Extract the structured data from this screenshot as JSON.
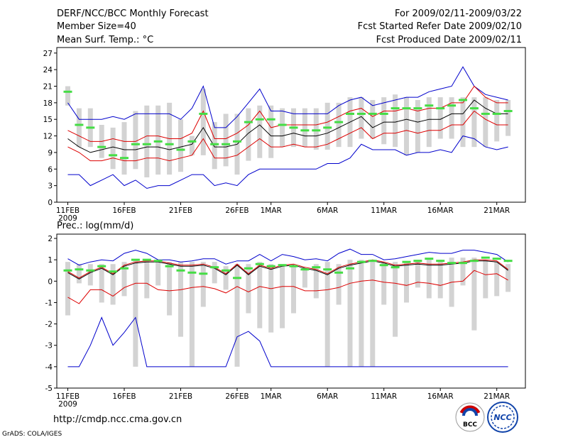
{
  "header": {
    "title": "DERF/NCC/BCC Monthly Forecast",
    "member_size": "Member Size=40",
    "variable": "Mean Surf. Temp.: °C",
    "period": "For 2009/02/11-2009/03/22",
    "fcst_started": "Fcst Started Refer Date 2009/02/10",
    "fcst_produced": "Fcst Produced Date 2009/02/11"
  },
  "footer": {
    "url": "http://cmdp.ncc.cma.gov.cn",
    "grads": "GrADS: COLA/IGES",
    "logo_left_text": "BCC",
    "logo_right_text": "NCC"
  },
  "colors": {
    "box": "#d3d3d3",
    "green": "#44dd44",
    "mean": "#000000",
    "red": "#dd0000",
    "blue": "#0000cc"
  },
  "chart_data": [
    {
      "type": "box-line",
      "title": "Mean Surf. Temp.: °C",
      "ylim": [
        0,
        28
      ],
      "yticks": [
        0,
        3,
        6,
        9,
        12,
        15,
        18,
        21,
        24,
        27
      ],
      "x_tick_labels": [
        "11FEB",
        "16FEB",
        "21FEB",
        "26FEB",
        "1MAR",
        "6MAR",
        "11MAR",
        "16MAR",
        "21MAR"
      ],
      "x_tick_days": [
        0,
        5,
        10,
        15,
        18,
        23,
        28,
        33,
        38
      ],
      "x_year_label": "2009",
      "days": 40,
      "box_low": [
        17.5,
        10,
        10,
        8,
        6,
        5,
        6,
        4.5,
        5,
        5,
        5.5,
        8.5,
        8.5,
        6,
        6.5,
        5,
        7.5,
        8,
        8,
        10,
        10,
        10,
        9.5,
        9.5,
        10,
        10,
        11.5,
        11.5,
        10.5,
        10,
        8.5,
        9,
        10,
        11.5,
        11.5,
        10,
        10,
        10,
        11,
        12
      ],
      "box_high": [
        21,
        17,
        17,
        14,
        13.5,
        14.5,
        16.5,
        17.5,
        17.5,
        18,
        15,
        12,
        20.5,
        14.5,
        16,
        16,
        17,
        17.5,
        17.5,
        17,
        17,
        17,
        17,
        18,
        18,
        19,
        19,
        18.5,
        19,
        19.5,
        19,
        18.5,
        19,
        19,
        19,
        19,
        19,
        19,
        18.5,
        18.5
      ],
      "green": [
        20,
        14,
        13.5,
        10,
        8.5,
        8,
        10.5,
        10.5,
        11,
        10.5,
        9.5,
        11,
        16,
        10.5,
        10.5,
        11,
        14.5,
        15,
        15,
        14,
        13.5,
        13,
        13,
        13.5,
        14.5,
        16,
        16,
        16,
        16,
        17,
        17,
        17,
        17.5,
        17,
        17.5,
        18.5,
        17,
        16,
        16,
        16.5
      ],
      "mean": [
        11.5,
        10,
        9,
        9.5,
        10,
        9.5,
        9.5,
        10,
        10,
        9.5,
        10,
        10.5,
        13.5,
        10,
        10,
        10.5,
        12.5,
        14,
        12,
        12,
        12.5,
        12,
        12,
        12.5,
        13.5,
        14.5,
        15.5,
        13.5,
        14.5,
        14.5,
        15,
        14.5,
        15,
        15,
        16,
        16,
        18.5,
        17,
        16,
        16
      ],
      "red_hi": [
        13,
        12,
        11,
        11,
        11.5,
        11,
        11,
        12,
        12,
        11.5,
        11.5,
        12.5,
        16.5,
        11.5,
        11.5,
        12.5,
        14,
        16.5,
        13.5,
        14,
        14,
        14,
        14,
        14.5,
        15.5,
        16.5,
        17,
        15.5,
        16.5,
        16.5,
        17,
        16.5,
        17,
        17,
        18,
        18,
        21,
        19,
        18,
        18
      ],
      "red_lo": [
        10,
        9,
        7.5,
        7.5,
        8,
        7.5,
        7.5,
        8,
        8,
        7.5,
        8,
        8.5,
        11.5,
        8,
        8,
        8.5,
        10,
        11.5,
        10,
        10,
        10.5,
        10,
        10,
        10.5,
        11.5,
        12.5,
        13.5,
        11.5,
        12.5,
        12.5,
        13,
        12.5,
        13,
        13,
        14,
        14,
        16.5,
        15,
        14,
        14
      ],
      "blue_hi": [
        18,
        15,
        15,
        15,
        15.5,
        15,
        16,
        16,
        16,
        16,
        15,
        17,
        21,
        13.5,
        13.5,
        15.5,
        18,
        20.5,
        16.5,
        16.5,
        16,
        16,
        16,
        16,
        17.5,
        18.5,
        19,
        17.5,
        18,
        18.5,
        19,
        19,
        20,
        20.5,
        21,
        24.5,
        21,
        19.5,
        19,
        18.5
      ],
      "blue_lo": [
        5,
        5,
        3,
        4,
        5,
        3,
        4,
        2.5,
        3,
        3,
        4,
        5,
        5,
        3,
        3.5,
        3,
        5,
        6,
        6,
        6,
        6,
        6,
        6,
        7,
        7,
        8,
        10.5,
        9.5,
        9.5,
        9.5,
        8.5,
        9,
        9,
        9.5,
        9,
        12,
        11.5,
        10,
        9.5,
        10
      ]
    },
    {
      "type": "box-line",
      "title": "Prec.: log(mm/d)",
      "ylim": [
        -5,
        2.2
      ],
      "yticks": [
        -5,
        -4,
        -3,
        -2,
        -1,
        0,
        1,
        2
      ],
      "x_tick_labels": [
        "11FEB",
        "16FEB",
        "21FEB",
        "26FEB",
        "1MAR",
        "6MAR",
        "11MAR",
        "16MAR",
        "21MAR"
      ],
      "x_tick_days": [
        0,
        5,
        10,
        15,
        18,
        23,
        28,
        33,
        38
      ],
      "x_year_label": "2009",
      "days": 40,
      "box_low": [
        -1.6,
        -0.1,
        -0.2,
        -1,
        -1.1,
        -0.7,
        -4,
        -0.8,
        -0.2,
        -1.6,
        -2.6,
        -4,
        -1.2,
        -0.1,
        -0.4,
        -4,
        -1.5,
        -2.2,
        -2.4,
        -2.2,
        -1.5,
        -0.3,
        -0.8,
        -4,
        -1.1,
        -4,
        -4,
        -4,
        -1.1,
        -2.6,
        -1,
        -0.3,
        -0.8,
        -0.8,
        -1.2,
        -0.2,
        -2.3,
        -0.8,
        -0.7,
        -0.5
      ],
      "box_high": [
        0.9,
        0.8,
        0.8,
        0.8,
        0.8,
        0.9,
        1,
        1,
        1,
        0.9,
        0.9,
        0.9,
        0.9,
        0.9,
        0.7,
        0.8,
        0.8,
        0.9,
        0.8,
        0.8,
        0.7,
        0.6,
        0.8,
        0.9,
        0.8,
        1,
        1,
        1,
        0.9,
        0.9,
        0.9,
        1,
        1,
        1,
        1.1,
        1.1,
        1.1,
        1,
        0.9,
        0.8
      ],
      "green": [
        0.5,
        0.55,
        0.5,
        0.7,
        0.45,
        0.6,
        1,
        1,
        0.95,
        0.7,
        0.5,
        0.4,
        0.35,
        0.65,
        0.5,
        0.15,
        0.6,
        0.8,
        0.7,
        0.75,
        0.7,
        0.55,
        0.65,
        0.55,
        0.4,
        0.6,
        0.9,
        0.95,
        0.75,
        0.65,
        0.9,
        0.95,
        1.05,
        0.95,
        0.85,
        0.85,
        0.95,
        1.1,
        1.05,
        0.95
      ],
      "mean": [
        0.4,
        0.1,
        0.4,
        0.6,
        0.3,
        0.7,
        0.85,
        0.9,
        0.9,
        0.8,
        0.7,
        0.7,
        0.75,
        0.6,
        0.3,
        0.75,
        0.3,
        0.7,
        0.55,
        0.7,
        0.75,
        0.6,
        0.5,
        0.3,
        0.6,
        0.75,
        0.85,
        0.95,
        0.85,
        0.7,
        0.75,
        0.8,
        0.75,
        0.75,
        0.8,
        0.85,
        0.95,
        0.95,
        0.9,
        0.5
      ],
      "red_hi": [
        0.45,
        0.15,
        0.45,
        0.65,
        0.35,
        0.75,
        0.9,
        0.95,
        0.95,
        0.85,
        0.75,
        0.75,
        0.8,
        0.65,
        0.35,
        0.8,
        0.35,
        0.75,
        0.6,
        0.75,
        0.8,
        0.65,
        0.55,
        0.35,
        0.65,
        0.8,
        0.9,
        1,
        0.9,
        0.75,
        0.8,
        0.85,
        0.8,
        0.8,
        0.85,
        0.9,
        1,
        1,
        0.95,
        0.55
      ],
      "red_lo": [
        -0.75,
        -1.05,
        -0.4,
        -0.4,
        -0.7,
        -0.3,
        -0.1,
        -0.1,
        -0.4,
        -0.45,
        -0.4,
        -0.3,
        -0.25,
        -0.35,
        -0.55,
        -0.25,
        -0.5,
        -0.25,
        -0.35,
        -0.25,
        -0.25,
        -0.45,
        -0.45,
        -0.4,
        -0.3,
        -0.1,
        0,
        0.05,
        -0.05,
        -0.1,
        -0.2,
        -0.05,
        -0.1,
        -0.2,
        -0.05,
        0,
        0.5,
        0.3,
        0.35,
        0.05
      ],
      "blue_hi": [
        1.05,
        0.75,
        0.9,
        1,
        0.95,
        1.3,
        1.45,
        1.3,
        1,
        1,
        0.9,
        0.95,
        1.05,
        1.05,
        0.8,
        0.95,
        0.95,
        1.25,
        0.95,
        1.25,
        1.15,
        1,
        1.05,
        0.95,
        1.3,
        1.5,
        1.25,
        1.25,
        1,
        1.05,
        1.15,
        1.25,
        1.35,
        1.3,
        1.3,
        1.45,
        1.45,
        1.35,
        1.25,
        0.9
      ],
      "blue_lo": [
        -4,
        -4,
        -3,
        -1.7,
        -3,
        -2.4,
        -1.7,
        -4,
        -4,
        -4,
        -4,
        -4,
        -4,
        -4,
        -4,
        -2.6,
        -2.35,
        -2.8,
        -4,
        -4,
        -4,
        -4,
        -4,
        -4,
        -4,
        -4,
        -4,
        -4,
        -4,
        -4,
        -4,
        -4,
        -4,
        -4,
        -4,
        -4,
        -4,
        -4,
        -4,
        -4
      ]
    }
  ]
}
